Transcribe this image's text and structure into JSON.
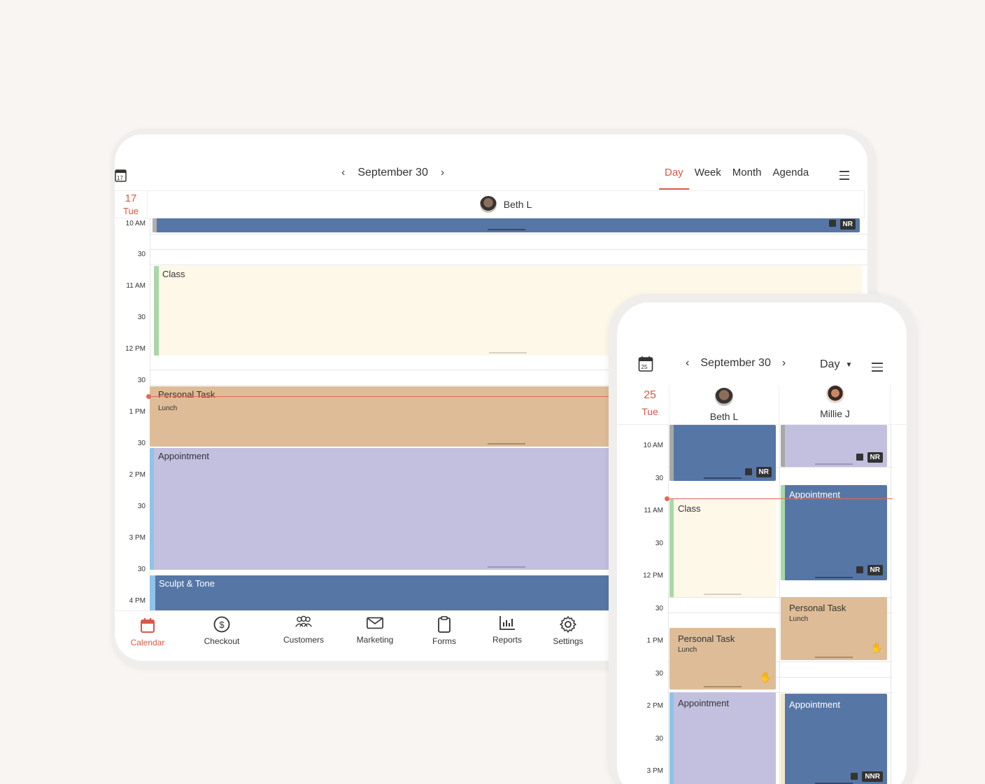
{
  "tablet": {
    "date_label": "September 30",
    "views": [
      "Day",
      "Week",
      "Month",
      "Agenda"
    ],
    "active_view": "Day",
    "day_number": "17",
    "weekday": "Tue",
    "staff": "Beth L",
    "times": [
      "10 AM",
      "30",
      "11 AM",
      "30",
      "12 PM",
      "30",
      "1 PM",
      "30",
      "2 PM",
      "30",
      "3 PM",
      "30",
      "4 PM"
    ],
    "events": {
      "top_tag": "NR",
      "class_title": "Class",
      "personal_title": "Personal Task",
      "personal_sub": "Lunch",
      "appointment_title": "Appointment",
      "sculpt_title": "Sculpt & Tone"
    },
    "tabs": [
      "Calendar",
      "Checkout",
      "Customers",
      "Marketing",
      "Forms",
      "Reports",
      "Settings"
    ]
  },
  "phone": {
    "date_label": "September 30",
    "view_label": "Day",
    "day_number": "25",
    "weekday": "Tue",
    "staff": [
      "Beth L",
      "Millie J"
    ],
    "times": [
      "10 AM",
      "30",
      "11 AM",
      "30",
      "12 PM",
      "30",
      "1 PM",
      "30",
      "2 PM",
      "30",
      "3 PM"
    ],
    "events": {
      "tag_nr": "NR",
      "tag_nnr": "NNR",
      "class_title": "Class",
      "appointment_title": "Appointment",
      "personal_title": "Personal Task",
      "personal_sub": "Lunch"
    }
  },
  "colors": {
    "accent": "#d65a45",
    "blue_event": "#5677a6",
    "lavender_event": "#c3bfdf",
    "tan_event": "#ddbc97",
    "cream_event": "#fef8e9",
    "green_bar": "#a8d8a8",
    "light_blue_bar": "#8fc3ea"
  }
}
